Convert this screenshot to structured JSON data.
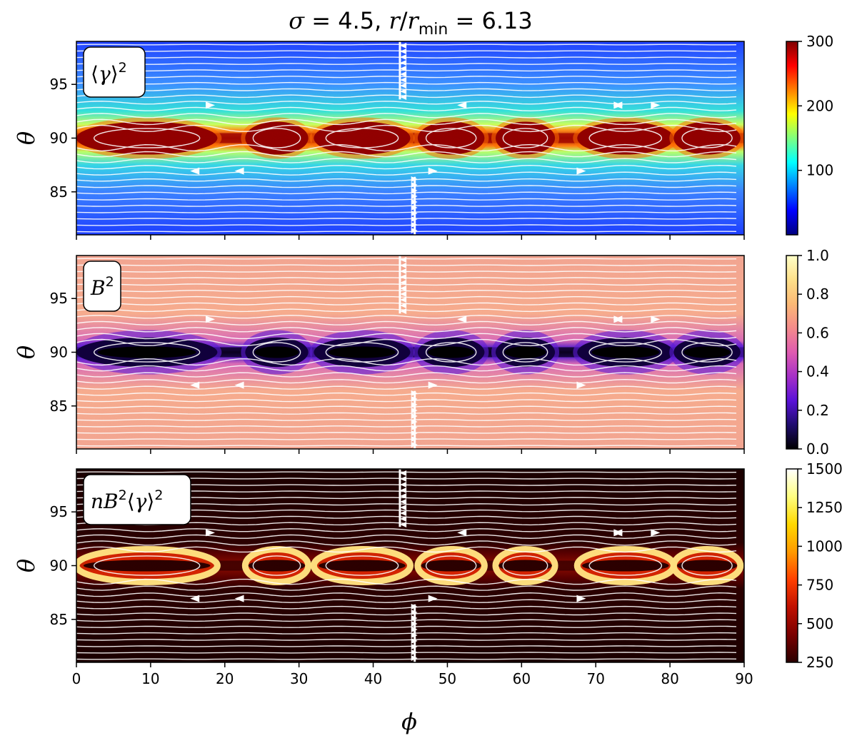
{
  "chart_data": {
    "type": "heatmap",
    "title": "σ = 4.5, r/r_min = 6.13",
    "title_parts": {
      "sigma": "σ",
      "eq1": " = 4.5, ",
      "r": "r",
      "slash": "/",
      "r2": "r",
      "sub": "min",
      "eq2": " = 6.13"
    },
    "xlabel": "ϕ",
    "ylabel": "θ",
    "xlim": [
      0,
      90
    ],
    "ylim": [
      81,
      99
    ],
    "xticks": [
      0,
      10,
      20,
      30,
      40,
      50,
      60,
      70,
      80,
      90
    ],
    "xtick_labels": [
      "0",
      "10",
      "20",
      "30",
      "40",
      "50",
      "60",
      "70",
      "80",
      "90"
    ],
    "yticks": [
      85,
      90,
      95
    ],
    "ytick_labels": [
      "85",
      "90",
      "95"
    ],
    "plasmoids": [
      {
        "center": 9.5,
        "width": 19
      },
      {
        "center": 27,
        "width": 8.5
      },
      {
        "center": 38.5,
        "width": 13
      },
      {
        "center": 50.5,
        "width": 9
      },
      {
        "center": 60.5,
        "width": 8
      },
      {
        "center": 74,
        "width": 13
      },
      {
        "center": 85,
        "width": 9
      }
    ],
    "current_sheet_theta": 90,
    "panels": [
      {
        "id": "gamma2",
        "label_text": "⟨γ⟩²",
        "label_parts": {
          "left": "⟨",
          "sym": "γ",
          "right": "⟩",
          "sup": "2"
        },
        "colormap": "jet",
        "clim": [
          0,
          300
        ],
        "cbar_ticks": [
          100,
          200,
          300
        ],
        "cbar_tick_labels": [
          "100",
          "200",
          "300"
        ]
      },
      {
        "id": "B2",
        "label_text": "B²",
        "label_parts": {
          "sym": "B",
          "sup": "2"
        },
        "colormap": "plasma",
        "clim": [
          0,
          1
        ],
        "cbar_ticks": [
          0.0,
          0.2,
          0.4,
          0.6,
          0.8,
          1.0
        ],
        "cbar_tick_labels": [
          "0.0",
          "0.2",
          "0.4",
          "0.6",
          "0.8",
          "1.0"
        ]
      },
      {
        "id": "nB2gamma2",
        "label_text": "nB²⟨γ⟩²",
        "label_parts": {
          "n": "n",
          "B": "B",
          "sup1": "2",
          "left": "⟨",
          "sym": "γ",
          "right": "⟩",
          "sup2": "2"
        },
        "colormap": "hot",
        "clim": [
          250,
          1500
        ],
        "cbar_ticks": [
          250,
          500,
          750,
          1000,
          1250,
          1500
        ],
        "cbar_tick_labels": [
          "250",
          "500",
          "750",
          "1000",
          "1250",
          "1500"
        ]
      }
    ]
  },
  "colors": {
    "jet": [
      "#00007f",
      "#0000ff",
      "#007fff",
      "#00ffff",
      "#7fff7f",
      "#ffff00",
      "#ff7f00",
      "#ff0000",
      "#7f0000"
    ],
    "plasma": [
      "#000000",
      "#1f0c6e",
      "#5a11d8",
      "#a630c7",
      "#df5bb0",
      "#f48b8b",
      "#fbb975",
      "#fde08a",
      "#ffffc8"
    ],
    "hot": [
      "#2a0000",
      "#7a0000",
      "#c01000",
      "#ff4000",
      "#ff9a00",
      "#ffd800",
      "#ffff80",
      "#ffffff"
    ],
    "streamline": "#ffffff"
  }
}
